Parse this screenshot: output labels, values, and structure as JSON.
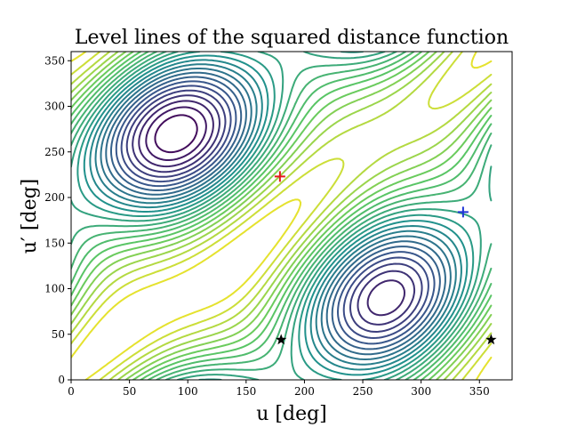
{
  "chart_data": {
    "type": "contour",
    "title": "Level lines of the squared distance function",
    "xlabel": "u [deg]",
    "ylabel": "u′ [deg]",
    "xlim": [
      0,
      378
    ],
    "ylim": [
      0,
      360
    ],
    "xticks": [
      0,
      50,
      100,
      150,
      200,
      250,
      300,
      350
    ],
    "yticks": [
      0,
      50,
      100,
      150,
      200,
      250,
      300,
      350
    ],
    "grid": false,
    "colormap": [
      "#440154",
      "#3b528b",
      "#21918c",
      "#5ec962",
      "#fde725"
    ],
    "contour_domain": {
      "x": [
        0,
        360
      ],
      "y": [
        0,
        360
      ]
    },
    "markers": [
      {
        "symbol": "plus",
        "x": 179,
        "y": 223,
        "color": "#e41a1c"
      },
      {
        "symbol": "plus",
        "x": 336,
        "y": 184,
        "color": "#1f35d6"
      },
      {
        "symbol": "star",
        "x": 180,
        "y": 44,
        "color": "#000000"
      },
      {
        "symbol": "star",
        "x": 360,
        "y": 44,
        "color": "#000000"
      }
    ]
  }
}
